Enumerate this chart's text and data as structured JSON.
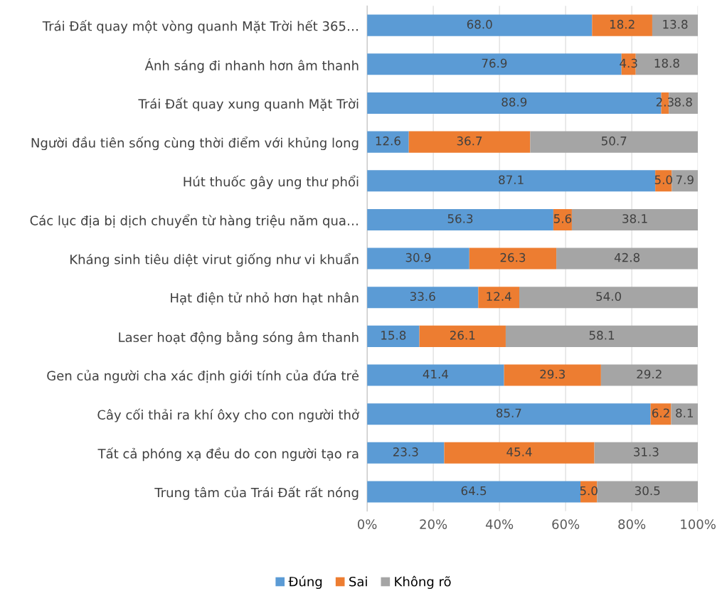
{
  "chart_data": {
    "type": "bar",
    "orientation": "horizontal",
    "stacked": true,
    "categories": [
      "Trái Đất quay một vòng quanh Mặt Trời hết 365…",
      "Ánh sáng đi nhanh hơn âm thanh",
      "Trái Đất quay xung quanh Mặt Trời",
      "Người đầu tiên sống cùng thời điểm với khủng long",
      "Hút thuốc gây ung thư phổi",
      "Các lục địa bị dịch chuyển từ hàng triệu năm qua…",
      "Kháng sinh tiêu diệt virut giống như vi khuẩn",
      "Hạt điện tử nhỏ hơn hạt nhân",
      "Laser hoạt động bằng sóng âm thanh",
      "Gen của người cha xác định giới tính của đứa trẻ",
      "Cây cối thải ra khí ôxy cho con người thở",
      "Tất cả phóng xạ đều do con người tạo ra",
      "Trung tâm của Trái Đất rất nóng"
    ],
    "series": [
      {
        "name": "Đúng",
        "color": "#5b9bd5",
        "values": [
          68.0,
          76.9,
          88.9,
          12.6,
          87.1,
          56.3,
          30.9,
          33.6,
          15.8,
          41.4,
          85.7,
          23.3,
          64.5
        ],
        "value_labels": [
          "68.0",
          "76.9",
          "88.9",
          "12.6",
          "87.1",
          "56.3",
          "30.9",
          "33.6",
          "15.8",
          "41.4",
          "85.7",
          "23.3",
          "64.5"
        ]
      },
      {
        "name": "Sai",
        "color": "#ed7d31",
        "values": [
          18.2,
          4.3,
          2.3,
          36.7,
          5.0,
          5.6,
          26.3,
          12.4,
          26.1,
          29.3,
          6.2,
          45.4,
          5.0
        ],
        "value_labels": [
          "18.2",
          "4.3",
          "2.3",
          "36.7",
          "5.0",
          "5.6",
          "26.3",
          "12.4",
          "26.1",
          "29.3",
          "6.2",
          "45.4",
          "5.0"
        ]
      },
      {
        "name": "Không rõ",
        "color": "#a5a5a5",
        "values": [
          13.8,
          18.8,
          8.8,
          50.7,
          7.9,
          38.1,
          42.8,
          54.0,
          58.1,
          29.2,
          8.1,
          31.3,
          30.5
        ],
        "value_labels": [
          "13.8",
          "18.8",
          "8.8",
          "50.7",
          "7.9",
          "38.1",
          "42.8",
          "54.0",
          "58.1",
          "29.2",
          "8.1",
          "31.3",
          "30.5"
        ]
      }
    ],
    "xlim": [
      0,
      100
    ],
    "xticks": [
      {
        "value": 0,
        "label": "0%"
      },
      {
        "value": 20,
        "label": "20%"
      },
      {
        "value": 40,
        "label": "40%"
      },
      {
        "value": 60,
        "label": "60%"
      },
      {
        "value": 80,
        "label": "80%"
      },
      {
        "value": 100,
        "label": "100%"
      }
    ],
    "grid": "x",
    "legend": "bottom"
  }
}
